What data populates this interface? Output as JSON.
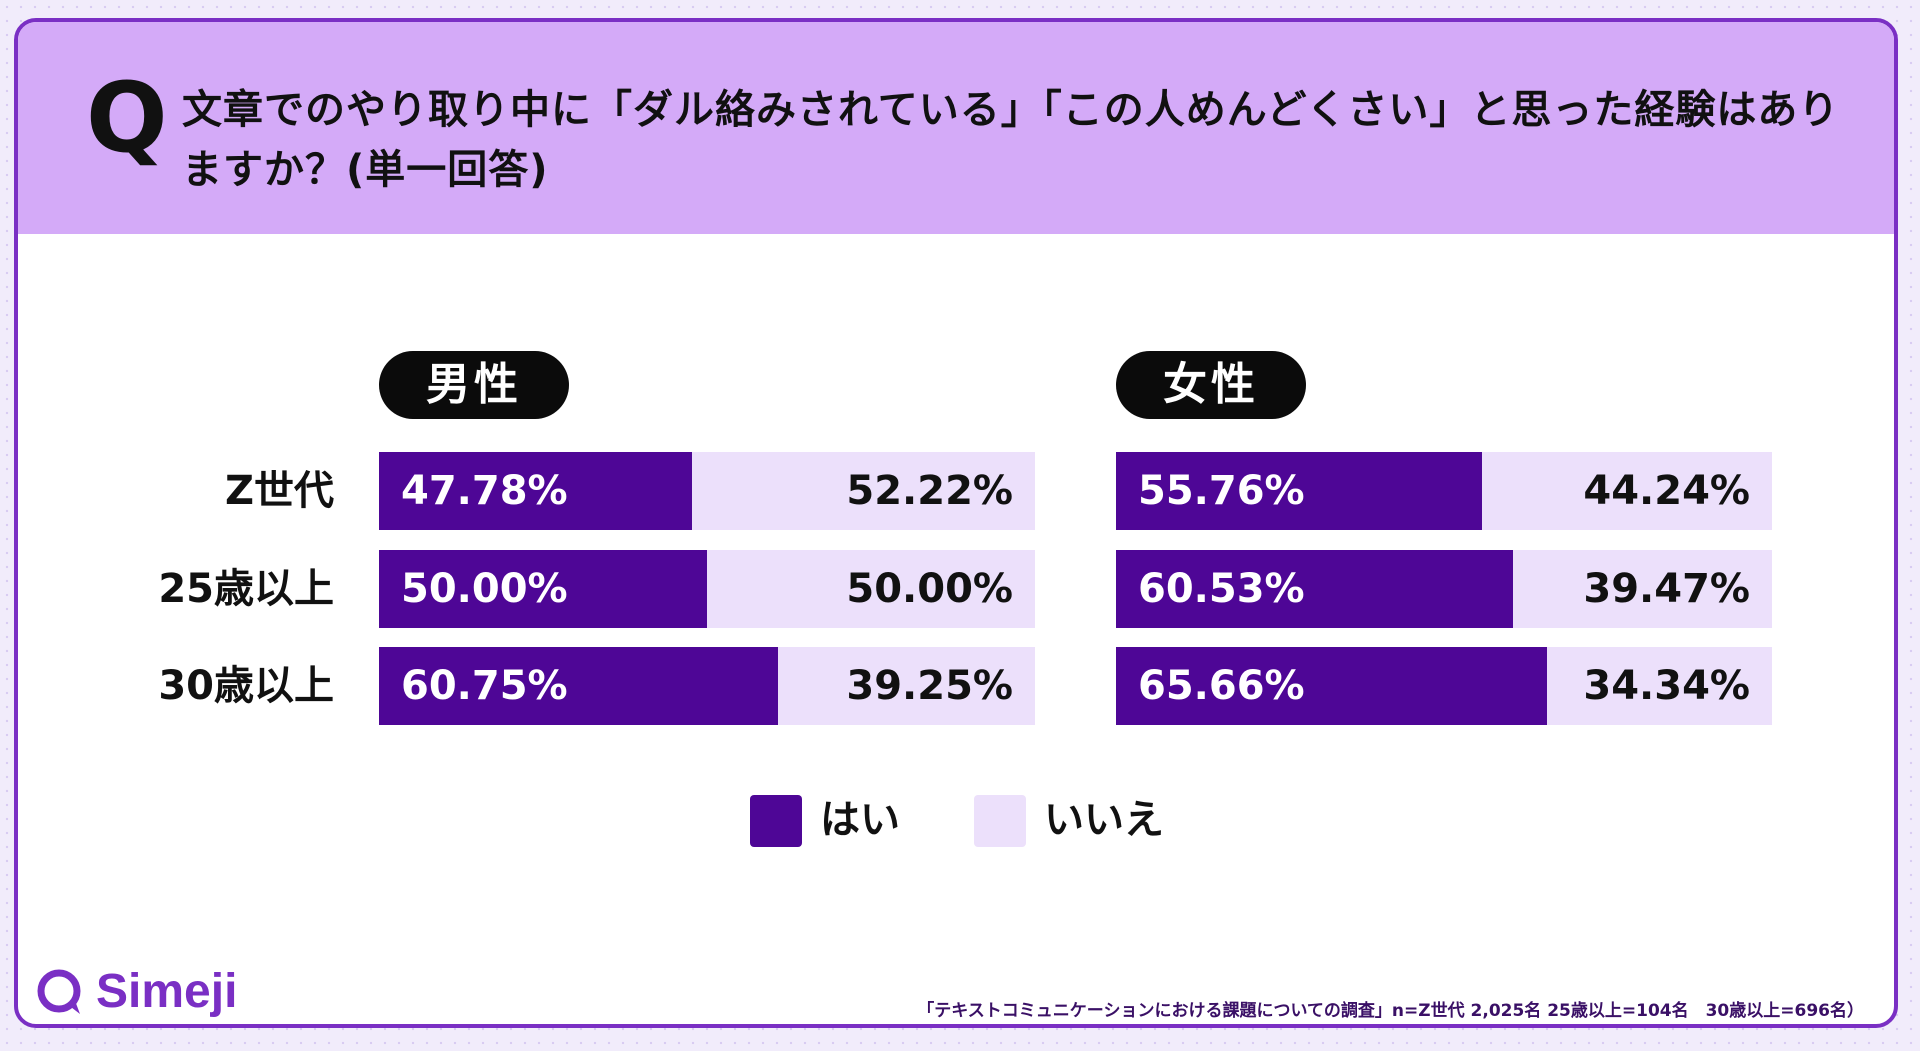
{
  "header": {
    "q_mark": "Q",
    "question": "文章でのやり取り中に「ダル絡みされている」「この人めんどくさい」と思った経験はありますか？(単一回答)"
  },
  "colors": {
    "yes": "#4e0696",
    "no": "#ece0fb",
    "header_bg": "#d4aaf8",
    "frame": "#7a2fc4"
  },
  "legend": {
    "yes_label": "はい",
    "no_label": "いいえ"
  },
  "footer": {
    "logo_text": "Simeji",
    "source": "「テキストコミュニケーションにおける課題についての調査」n=Z世代 2,025名 25歳以上=104名　30歳以上=696名）"
  },
  "chart_data": [
    {
      "type": "bar",
      "stacked": true,
      "orientation": "horizontal",
      "title": "男性",
      "categories": [
        "Z世代",
        "25歳以上",
        "30歳以上"
      ],
      "series": [
        {
          "name": "はい",
          "values": [
            47.78,
            50.0,
            60.75
          ],
          "labels": [
            "47.78%",
            "50.00%",
            "60.75%"
          ]
        },
        {
          "name": "いいえ",
          "values": [
            52.22,
            50.0,
            39.25
          ],
          "labels": [
            "52.22%",
            "50.00%",
            "39.25%"
          ]
        }
      ],
      "xlim": [
        0,
        100
      ]
    },
    {
      "type": "bar",
      "stacked": true,
      "orientation": "horizontal",
      "title": "女性",
      "categories": [
        "Z世代",
        "25歳以上",
        "30歳以上"
      ],
      "series": [
        {
          "name": "はい",
          "values": [
            55.76,
            60.53,
            65.66
          ],
          "labels": [
            "55.76%",
            "60.53%",
            "65.66%"
          ]
        },
        {
          "name": "いいえ",
          "values": [
            44.24,
            39.47,
            34.34
          ],
          "labels": [
            "44.24%",
            "39.47%",
            "34.34%"
          ]
        }
      ],
      "xlim": [
        0,
        100
      ]
    }
  ]
}
